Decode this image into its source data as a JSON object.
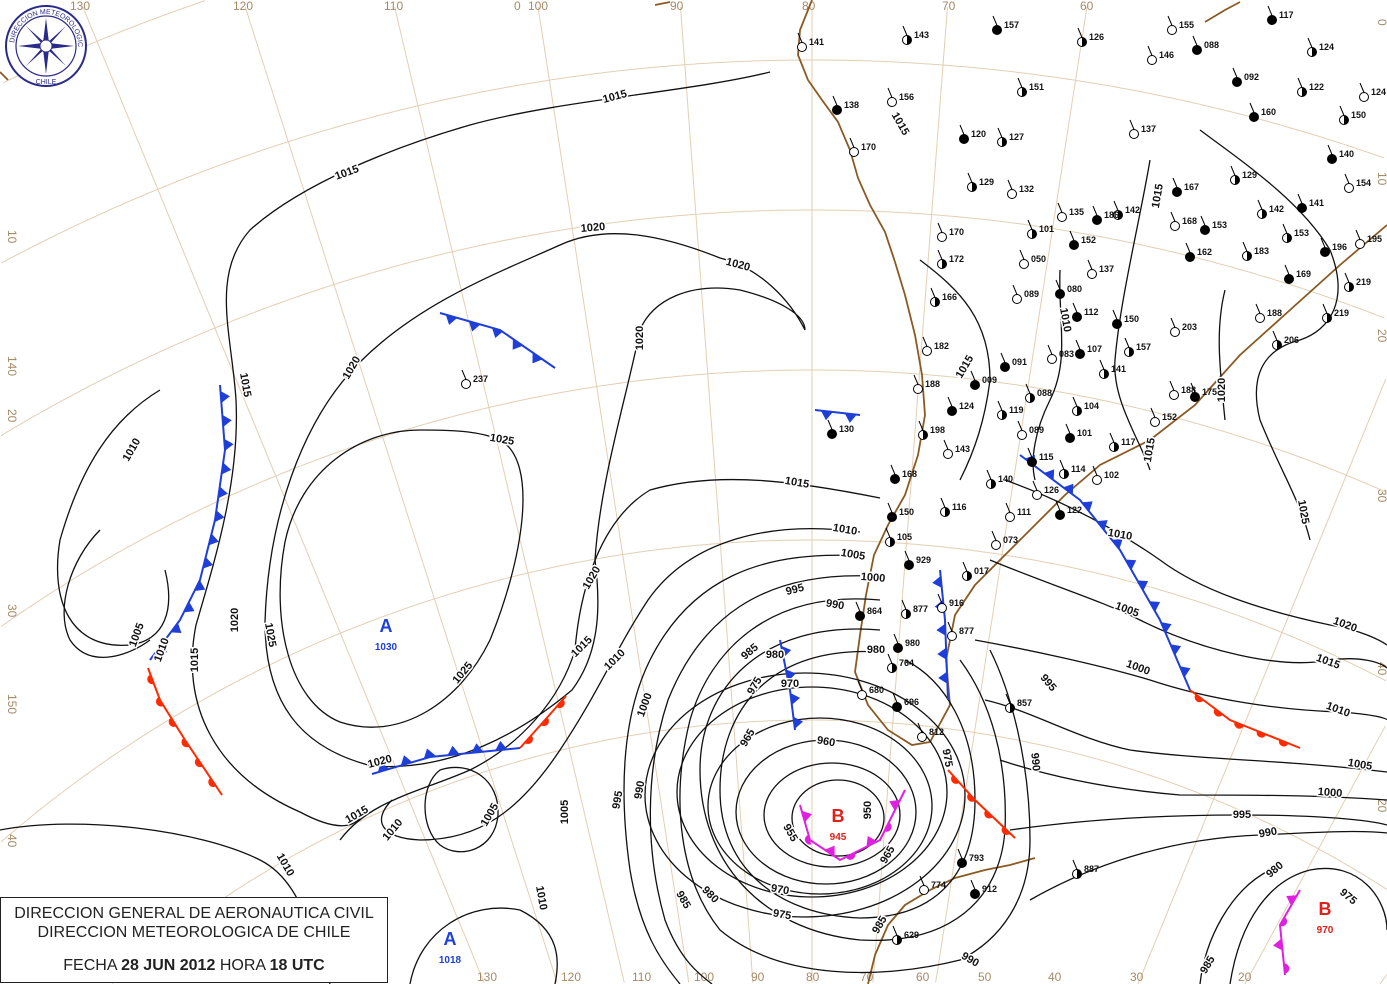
{
  "header": {
    "organization_line1": "DIRECCION GENERAL DE AERONAUTICA CIVIL",
    "organization_line2": "DIRECCION METEOROLOGICA DE CHILE",
    "date_label": "FECHA",
    "date_value": "28 JUN 2012",
    "hour_label": "HORA",
    "hour_value": "18 UTC"
  },
  "logo": {
    "text_top": "DIRECCION METEOROLOGICA",
    "text_bottom": "CHILE"
  },
  "colors": {
    "high": "#1f3fd8",
    "low_value": "#e0201a",
    "cold_front": "#1f3fd8",
    "warm_front": "#ff2a00",
    "occluded_front": "#e020e0",
    "coastline": "#8a5a22",
    "graticule": "#e3cfb3"
  },
  "pressure_centers": [
    {
      "type": "A",
      "value": "1030"
    },
    {
      "type": "A",
      "value": "1018"
    },
    {
      "type": "B",
      "value": "945"
    },
    {
      "type": "B",
      "value": "970"
    }
  ],
  "grid_labels": {
    "top": [
      "130",
      "120",
      "110",
      "100",
      "90",
      "80",
      "70",
      "60",
      "0"
    ],
    "bottom": [
      "130",
      "120",
      "110",
      "100",
      "90",
      "80",
      "70",
      "60",
      "50",
      "40",
      "30",
      "20"
    ],
    "left": [
      "10",
      "140",
      "20",
      "30",
      "150",
      "40"
    ],
    "right": [
      "0",
      "10",
      "20",
      "30",
      "40",
      "20"
    ]
  },
  "isobar_labels": [
    "1015",
    "1015",
    "1020",
    "1020",
    "1020",
    "1020",
    "1015",
    "1010",
    "1025",
    "1015",
    "1010",
    "1005",
    "1000",
    "995",
    "990",
    "985",
    "980",
    "975",
    "970",
    "965",
    "960",
    "955",
    "950",
    "965",
    "970",
    "975",
    "980",
    "985",
    "990",
    "995",
    "1000",
    "1005",
    "1010",
    "1015",
    "1020",
    "1025",
    "1025",
    "1020",
    "1015",
    "1005",
    "1010",
    "1020",
    "1015",
    "1010",
    "1005",
    "1010",
    "1010",
    "990",
    "985",
    "975",
    "980",
    "990",
    "995",
    "1000",
    "1005",
    "1010",
    "1015",
    "1020",
    "1025",
    "1020",
    "1015",
    "1010",
    "1005",
    "1000",
    "995",
    "990",
    "980",
    "975",
    "985",
    "1015",
    "1015",
    "1010",
    "1015"
  ],
  "stations": [
    "157",
    "126",
    "155",
    "117",
    "143",
    "141",
    "088",
    "124",
    "146",
    "092",
    "151",
    "156",
    "138",
    "122",
    "124",
    "160",
    "150",
    "170",
    "120",
    "127",
    "137",
    "140",
    "129",
    "132",
    "167",
    "129",
    "154",
    "141",
    "142",
    "135",
    "186",
    "142",
    "168",
    "153",
    "101",
    "170",
    "152",
    "153",
    "195",
    "196",
    "172",
    "050",
    "162",
    "183",
    "137",
    "169",
    "219",
    "089",
    "080",
    "166",
    "188",
    "112",
    "219",
    "203",
    "150",
    "206",
    "182",
    "107",
    "157",
    "083",
    "091",
    "141",
    "188",
    "009",
    "088",
    "188",
    "175",
    "104",
    "152",
    "124",
    "119",
    "237",
    "130",
    "198",
    "089",
    "101",
    "117",
    "143",
    "115",
    "114",
    "102",
    "168",
    "140",
    "126",
    "150",
    "116",
    "111",
    "122",
    "105",
    "073",
    "929",
    "017",
    "916",
    "864",
    "877",
    "877",
    "980",
    "764",
    "680",
    "696",
    "857",
    "812",
    "793",
    "887",
    "774",
    "912",
    "629"
  ]
}
